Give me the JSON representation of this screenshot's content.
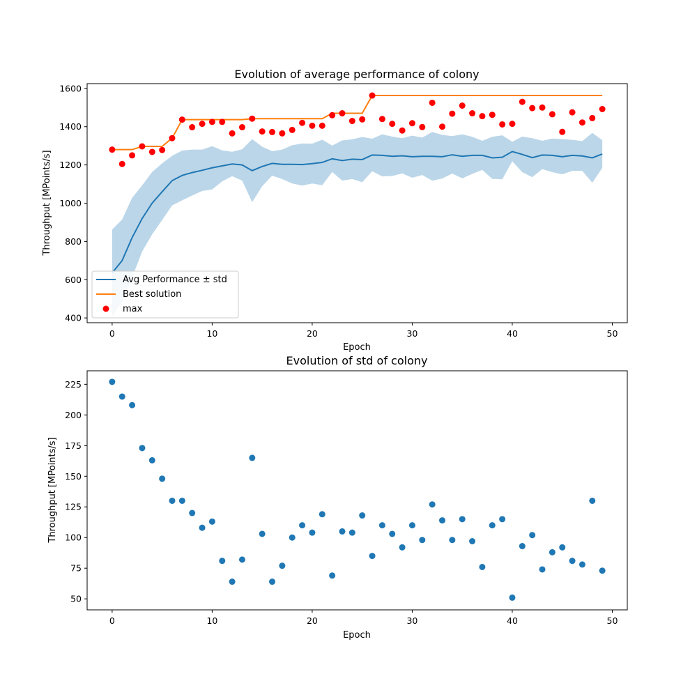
{
  "chart_data": [
    {
      "type": "line",
      "title": "Evolution of average performance of colony",
      "xlabel": "Epoch",
      "ylabel": "Throughput [MPoints/s]",
      "xlim": [
        -2.5,
        51.5
      ],
      "ylim": [
        375,
        1625
      ],
      "xticks": [
        0,
        10,
        20,
        30,
        40,
        50
      ],
      "yticks": [
        400,
        600,
        800,
        1000,
        1200,
        1400,
        1600
      ],
      "legend_position": "lower-left",
      "colors": {
        "avg": "#1f77b4",
        "band": "#1f77b4",
        "best": "#ff7f0e",
        "max": "#ff0000"
      },
      "legend": [
        {
          "key": "avg",
          "label": "Avg Performance ± std"
        },
        {
          "key": "best",
          "label": "Best solution"
        },
        {
          "key": "max",
          "label": "max"
        }
      ],
      "x": [
        0,
        1,
        2,
        3,
        4,
        5,
        6,
        7,
        8,
        9,
        10,
        11,
        12,
        13,
        14,
        15,
        16,
        17,
        18,
        19,
        20,
        21,
        22,
        23,
        24,
        25,
        26,
        27,
        28,
        29,
        30,
        31,
        32,
        33,
        34,
        35,
        36,
        37,
        38,
        39,
        40,
        41,
        42,
        43,
        44,
        45,
        46,
        47,
        48,
        49
      ],
      "avg": [
        635,
        700,
        820,
        920,
        1000,
        1060,
        1118,
        1145,
        1160,
        1172,
        1185,
        1195,
        1205,
        1200,
        1170,
        1192,
        1208,
        1203,
        1203,
        1202,
        1207,
        1213,
        1232,
        1223,
        1230,
        1228,
        1252,
        1250,
        1245,
        1248,
        1243,
        1245,
        1245,
        1243,
        1253,
        1245,
        1250,
        1250,
        1237,
        1240,
        1270,
        1255,
        1238,
        1252,
        1250,
        1243,
        1250,
        1247,
        1237,
        1257
      ],
      "std": [
        227,
        215,
        208,
        173,
        163,
        148,
        130,
        130,
        120,
        108,
        113,
        81,
        64,
        82,
        165,
        103,
        64,
        77,
        100,
        110,
        104,
        119,
        69,
        105,
        104,
        118,
        85,
        110,
        103,
        92,
        110,
        98,
        127,
        114,
        98,
        115,
        97,
        76,
        110,
        115,
        51,
        93,
        102,
        74,
        88,
        92,
        81,
        78,
        130,
        73
      ],
      "best": [
        1280,
        1280,
        1280,
        1297,
        1297,
        1297,
        1340,
        1437,
        1437,
        1437,
        1437,
        1437,
        1437,
        1437,
        1442,
        1442,
        1442,
        1442,
        1442,
        1442,
        1442,
        1442,
        1470,
        1470,
        1470,
        1470,
        1563,
        1563,
        1563,
        1563,
        1563,
        1563,
        1563,
        1563,
        1563,
        1563,
        1563,
        1563,
        1563,
        1563,
        1563,
        1563,
        1563,
        1563,
        1563,
        1563,
        1563,
        1563,
        1563,
        1563
      ],
      "max": [
        1280,
        1205,
        1250,
        1297,
        1268,
        1278,
        1340,
        1437,
        1397,
        1415,
        1425,
        1425,
        1365,
        1397,
        1442,
        1375,
        1372,
        1365,
        1383,
        1420,
        1405,
        1405,
        1460,
        1470,
        1430,
        1438,
        1563,
        1440,
        1415,
        1380,
        1418,
        1398,
        1525,
        1400,
        1468,
        1510,
        1470,
        1455,
        1462,
        1412,
        1415,
        1530,
        1497,
        1500,
        1465,
        1373,
        1475,
        1422,
        1445,
        1492
      ]
    },
    {
      "type": "scatter",
      "title": "Evolution of std of colony",
      "xlabel": "Epoch",
      "ylabel": "Throughput [MPoints/s]",
      "xlim": [
        -2.5,
        51.5
      ],
      "ylim": [
        41,
        236
      ],
      "xticks": [
        0,
        10,
        20,
        30,
        40,
        50
      ],
      "yticks": [
        50,
        75,
        100,
        125,
        150,
        175,
        200,
        225
      ],
      "color": "#1f77b4",
      "x": [
        0,
        1,
        2,
        3,
        4,
        5,
        6,
        7,
        8,
        9,
        10,
        11,
        12,
        13,
        14,
        15,
        16,
        17,
        18,
        19,
        20,
        21,
        22,
        23,
        24,
        25,
        26,
        27,
        28,
        29,
        30,
        31,
        32,
        33,
        34,
        35,
        36,
        37,
        38,
        39,
        40,
        41,
        42,
        43,
        44,
        45,
        46,
        47,
        48,
        49
      ],
      "y": [
        227,
        215,
        208,
        173,
        163,
        148,
        130,
        130,
        120,
        108,
        113,
        81,
        64,
        82,
        165,
        103,
        64,
        77,
        100,
        110,
        104,
        119,
        69,
        105,
        104,
        118,
        85,
        110,
        103,
        92,
        110,
        98,
        127,
        114,
        98,
        115,
        97,
        76,
        110,
        115,
        51,
        93,
        102,
        74,
        88,
        92,
        81,
        78,
        130,
        73
      ]
    }
  ]
}
